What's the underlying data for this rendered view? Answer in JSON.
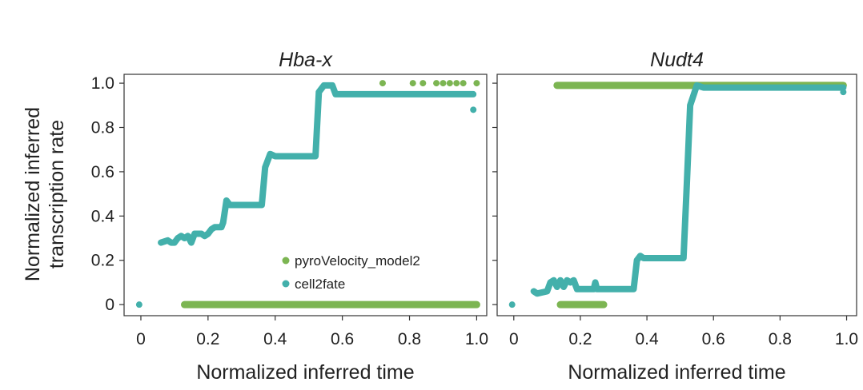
{
  "ylabel_line1": "Normalized inferred",
  "ylabel_line2": "transcription rate",
  "colors": {
    "pyro": "#7cb552",
    "cell2fate": "#43b0ab",
    "axis": "#333333"
  },
  "chart_data": [
    {
      "type": "scatter",
      "title": "Hba-x",
      "xlabel": "Normalized inferred time",
      "xlim": [
        -0.05,
        1.03
      ],
      "ylim": [
        -0.05,
        1.04
      ],
      "xticks": [
        0,
        0.2,
        0.4,
        0.6,
        0.8,
        1.0
      ],
      "xtick_labels": [
        "0",
        "0.2",
        "0.4",
        "0.6",
        "0.8",
        "1.0"
      ],
      "yticks": [
        0,
        0.2,
        0.4,
        0.6,
        0.8,
        1.0
      ],
      "ytick_labels": [
        "0",
        "0.2",
        "0.4",
        "0.6",
        "0.8",
        "1.0"
      ],
      "legend": {
        "position": "lower-right",
        "entries": [
          "pyroVelocity_model2",
          "cell2fate"
        ]
      },
      "series": [
        {
          "name": "pyroVelocity_model2",
          "color": "#7cb552",
          "segments": [
            [
              0.13,
              0.0,
              1.0,
              0.0
            ]
          ],
          "points": [
            [
              0.72,
              1.0
            ],
            [
              0.81,
              1.0
            ],
            [
              0.84,
              1.0
            ],
            [
              0.88,
              1.0
            ],
            [
              0.9,
              1.0
            ],
            [
              0.92,
              1.0
            ],
            [
              0.94,
              1.0
            ],
            [
              0.96,
              1.0
            ],
            [
              1.0,
              1.0
            ]
          ]
        },
        {
          "name": "cell2fate",
          "color": "#43b0ab",
          "path": [
            [
              0.06,
              0.28
            ],
            [
              0.08,
              0.29
            ],
            [
              0.09,
              0.28
            ],
            [
              0.1,
              0.28
            ],
            [
              0.11,
              0.3
            ],
            [
              0.12,
              0.31
            ],
            [
              0.13,
              0.3
            ],
            [
              0.14,
              0.31
            ],
            [
              0.15,
              0.28
            ],
            [
              0.16,
              0.32
            ],
            [
              0.18,
              0.32
            ],
            [
              0.19,
              0.31
            ],
            [
              0.2,
              0.32
            ],
            [
              0.21,
              0.34
            ],
            [
              0.22,
              0.35
            ],
            [
              0.23,
              0.35
            ],
            [
              0.24,
              0.35
            ],
            [
              0.245,
              0.37
            ],
            [
              0.255,
              0.47
            ],
            [
              0.265,
              0.45
            ],
            [
              0.36,
              0.45
            ],
            [
              0.37,
              0.62
            ],
            [
              0.385,
              0.68
            ],
            [
              0.4,
              0.67
            ],
            [
              0.52,
              0.67
            ],
            [
              0.53,
              0.96
            ],
            [
              0.545,
              0.99
            ],
            [
              0.57,
              0.99
            ],
            [
              0.58,
              0.95
            ],
            [
              0.99,
              0.95
            ]
          ],
          "points": [
            [
              -0.005,
              0.0
            ],
            [
              0.99,
              0.88
            ]
          ]
        }
      ]
    },
    {
      "type": "scatter",
      "title": "Nudt4",
      "xlabel": "Normalized inferred time",
      "xlim": [
        -0.05,
        1.03
      ],
      "ylim": [
        -0.05,
        1.04
      ],
      "xticks": [
        0,
        0.2,
        0.4,
        0.6,
        0.8,
        1.0
      ],
      "xtick_labels": [
        "0",
        "0.2",
        "0.4",
        "0.6",
        "0.8",
        "1.0"
      ],
      "yticks": [
        0,
        0.2,
        0.4,
        0.6,
        0.8,
        1.0
      ],
      "ytick_labels": [],
      "series": [
        {
          "name": "pyroVelocity_model2",
          "color": "#7cb552",
          "segments": [
            [
              0.13,
              0.99,
              0.99,
              0.99
            ],
            [
              0.14,
              0.0,
              0.27,
              0.0
            ]
          ],
          "points": []
        },
        {
          "name": "cell2fate",
          "color": "#43b0ab",
          "path": [
            [
              0.06,
              0.06
            ],
            [
              0.07,
              0.05
            ],
            [
              0.1,
              0.06
            ],
            [
              0.11,
              0.1
            ],
            [
              0.12,
              0.11
            ],
            [
              0.13,
              0.08
            ],
            [
              0.14,
              0.11
            ],
            [
              0.15,
              0.08
            ],
            [
              0.16,
              0.11
            ],
            [
              0.17,
              0.1
            ],
            [
              0.18,
              0.11
            ],
            [
              0.19,
              0.07
            ],
            [
              0.24,
              0.07
            ],
            [
              0.245,
              0.1
            ],
            [
              0.25,
              0.07
            ],
            [
              0.36,
              0.07
            ],
            [
              0.37,
              0.2
            ],
            [
              0.38,
              0.22
            ],
            [
              0.39,
              0.21
            ],
            [
              0.51,
              0.21
            ],
            [
              0.52,
              0.55
            ],
            [
              0.53,
              0.9
            ],
            [
              0.55,
              0.99
            ],
            [
              0.57,
              0.98
            ],
            [
              0.99,
              0.98
            ]
          ],
          "points": [
            [
              -0.005,
              0.0
            ],
            [
              0.99,
              0.96
            ]
          ]
        }
      ]
    }
  ]
}
